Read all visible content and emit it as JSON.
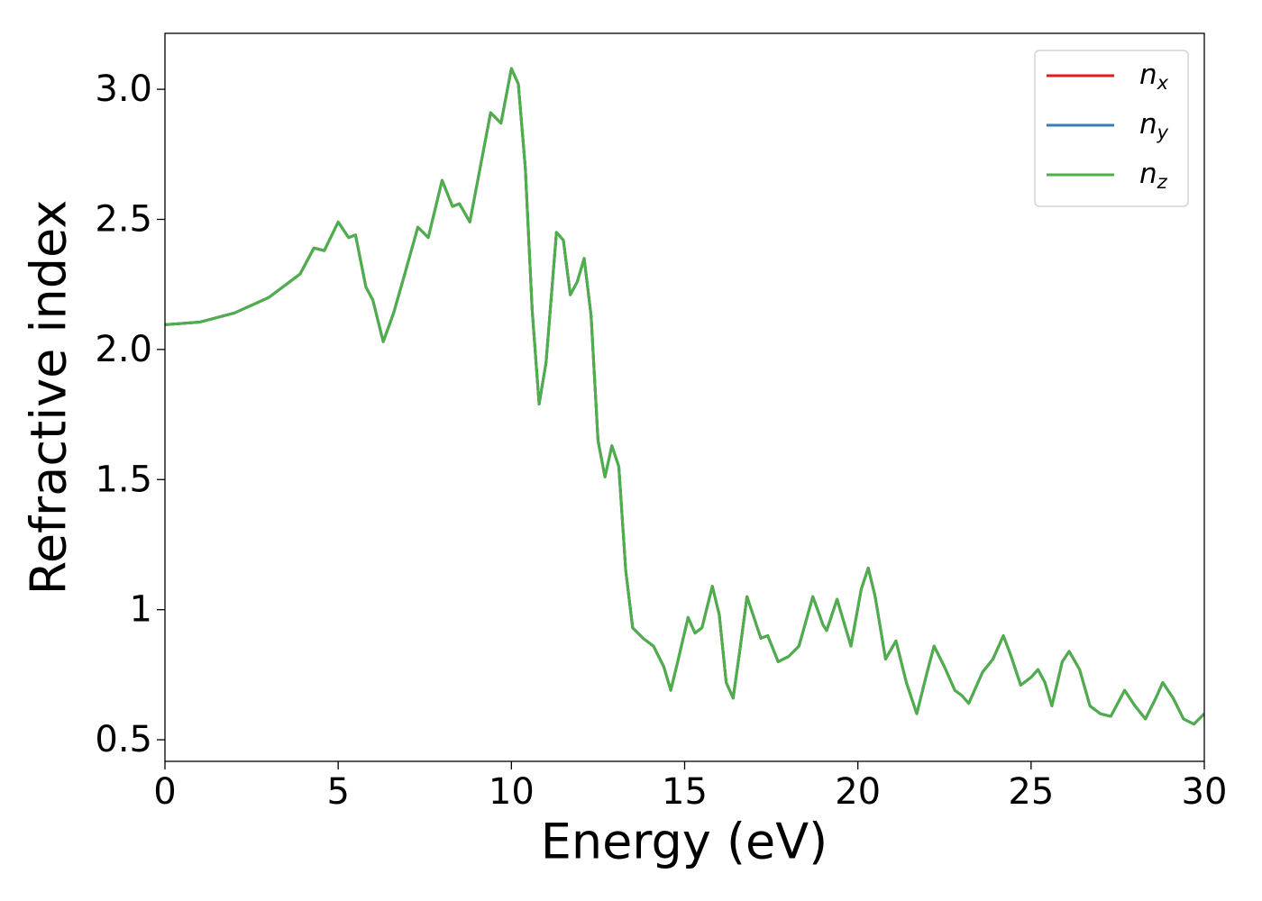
{
  "chart_data": {
    "type": "line",
    "xlabel": "Energy (eV)",
    "ylabel": "Refractive index",
    "x": [
      0,
      1,
      2,
      3,
      3.5,
      3.9,
      4.3,
      4.6,
      5.0,
      5.3,
      5.5,
      5.8,
      6.0,
      6.3,
      6.6,
      6.9,
      7.3,
      7.6,
      8.0,
      8.3,
      8.5,
      8.8,
      9.1,
      9.4,
      9.7,
      10.0,
      10.2,
      10.4,
      10.6,
      10.8,
      11.0,
      11.3,
      11.5,
      11.7,
      11.9,
      12.1,
      12.3,
      12.5,
      12.7,
      12.9,
      13.1,
      13.3,
      13.5,
      13.8,
      14.1,
      14.4,
      14.6,
      14.8,
      15.1,
      15.3,
      15.5,
      15.8,
      16.0,
      16.2,
      16.4,
      16.6,
      16.8,
      17.0,
      17.2,
      17.4,
      17.7,
      18.0,
      18.3,
      18.7,
      19.0,
      19.1,
      19.4,
      19.6,
      19.8,
      20.1,
      20.3,
      20.5,
      20.8,
      21.1,
      21.4,
      21.7,
      22.0,
      22.2,
      22.5,
      22.8,
      23.0,
      23.2,
      23.6,
      23.9,
      24.2,
      24.4,
      24.7,
      25.0,
      25.2,
      25.4,
      25.6,
      25.9,
      26.1,
      26.4,
      26.7,
      27.0,
      27.3,
      27.7,
      28.0,
      28.3,
      28.6,
      28.8,
      29.1,
      29.4,
      29.7,
      30.0
    ],
    "series": [
      {
        "name": "nx",
        "color": "#e41a1c",
        "values": [
          2.095,
          2.105,
          2.14,
          2.2,
          2.25,
          2.29,
          2.39,
          2.38,
          2.49,
          2.43,
          2.44,
          2.24,
          2.19,
          2.03,
          2.14,
          2.28,
          2.47,
          2.43,
          2.65,
          2.55,
          2.56,
          2.49,
          2.7,
          2.91,
          2.87,
          3.08,
          3.02,
          2.7,
          2.15,
          1.79,
          1.95,
          2.45,
          2.42,
          2.21,
          2.26,
          2.35,
          2.13,
          1.65,
          1.51,
          1.63,
          1.55,
          1.15,
          0.93,
          0.89,
          0.86,
          0.78,
          0.69,
          0.8,
          0.97,
          0.91,
          0.93,
          1.09,
          0.98,
          0.72,
          0.66,
          0.85,
          1.05,
          0.97,
          0.89,
          0.9,
          0.8,
          0.82,
          0.86,
          1.05,
          0.94,
          0.92,
          1.04,
          0.95,
          0.86,
          1.08,
          1.16,
          1.05,
          0.81,
          0.88,
          0.72,
          0.6,
          0.76,
          0.86,
          0.78,
          0.69,
          0.67,
          0.64,
          0.76,
          0.81,
          0.9,
          0.83,
          0.71,
          0.74,
          0.77,
          0.72,
          0.63,
          0.8,
          0.84,
          0.77,
          0.63,
          0.6,
          0.59,
          0.69,
          0.63,
          0.58,
          0.66,
          0.72,
          0.66,
          0.58,
          0.56,
          0.6
        ]
      },
      {
        "name": "ny",
        "color": "#377eb8",
        "values": [
          2.095,
          2.105,
          2.14,
          2.2,
          2.25,
          2.29,
          2.39,
          2.38,
          2.49,
          2.43,
          2.44,
          2.24,
          2.19,
          2.03,
          2.14,
          2.28,
          2.47,
          2.43,
          2.65,
          2.55,
          2.56,
          2.49,
          2.7,
          2.91,
          2.87,
          3.08,
          3.02,
          2.7,
          2.15,
          1.79,
          1.95,
          2.45,
          2.42,
          2.21,
          2.26,
          2.35,
          2.13,
          1.65,
          1.51,
          1.63,
          1.55,
          1.15,
          0.93,
          0.89,
          0.86,
          0.78,
          0.69,
          0.8,
          0.97,
          0.91,
          0.93,
          1.09,
          0.98,
          0.72,
          0.66,
          0.85,
          1.05,
          0.97,
          0.89,
          0.9,
          0.8,
          0.82,
          0.86,
          1.05,
          0.94,
          0.92,
          1.04,
          0.95,
          0.86,
          1.08,
          1.16,
          1.05,
          0.81,
          0.88,
          0.72,
          0.6,
          0.76,
          0.86,
          0.78,
          0.69,
          0.67,
          0.64,
          0.76,
          0.81,
          0.9,
          0.83,
          0.71,
          0.74,
          0.77,
          0.72,
          0.63,
          0.8,
          0.84,
          0.77,
          0.63,
          0.6,
          0.59,
          0.69,
          0.63,
          0.58,
          0.66,
          0.72,
          0.66,
          0.58,
          0.56,
          0.6
        ]
      },
      {
        "name": "nz",
        "color": "#4daf4a",
        "values": [
          2.095,
          2.105,
          2.14,
          2.2,
          2.25,
          2.29,
          2.39,
          2.38,
          2.49,
          2.43,
          2.44,
          2.24,
          2.19,
          2.03,
          2.14,
          2.28,
          2.47,
          2.43,
          2.65,
          2.55,
          2.56,
          2.49,
          2.7,
          2.91,
          2.87,
          3.08,
          3.02,
          2.7,
          2.15,
          1.79,
          1.95,
          2.45,
          2.42,
          2.21,
          2.26,
          2.35,
          2.13,
          1.65,
          1.51,
          1.63,
          1.55,
          1.15,
          0.93,
          0.89,
          0.86,
          0.78,
          0.69,
          0.8,
          0.97,
          0.91,
          0.93,
          1.09,
          0.98,
          0.72,
          0.66,
          0.85,
          1.05,
          0.97,
          0.89,
          0.9,
          0.8,
          0.82,
          0.86,
          1.05,
          0.94,
          0.92,
          1.04,
          0.95,
          0.86,
          1.08,
          1.16,
          1.05,
          0.81,
          0.88,
          0.72,
          0.6,
          0.76,
          0.86,
          0.78,
          0.69,
          0.67,
          0.64,
          0.76,
          0.81,
          0.9,
          0.83,
          0.71,
          0.74,
          0.77,
          0.72,
          0.63,
          0.8,
          0.84,
          0.77,
          0.63,
          0.6,
          0.59,
          0.69,
          0.63,
          0.58,
          0.66,
          0.72,
          0.66,
          0.58,
          0.56,
          0.6
        ]
      }
    ],
    "xlim": [
      0,
      30
    ],
    "xticks": [
      0,
      5,
      10,
      15,
      20,
      25,
      30
    ],
    "ylim": [
      0.417,
      3.215
    ],
    "yticks": [
      0.5,
      1.0,
      {
        "value": 1.5,
        "label": "1.5"
      },
      {
        "value": 2.0,
        "label": "2.0"
      },
      {
        "value": 2.5,
        "label": "2.5"
      },
      {
        "value": 3.0,
        "label": "3.0"
      }
    ],
    "grid": false,
    "legend": "upper right"
  }
}
